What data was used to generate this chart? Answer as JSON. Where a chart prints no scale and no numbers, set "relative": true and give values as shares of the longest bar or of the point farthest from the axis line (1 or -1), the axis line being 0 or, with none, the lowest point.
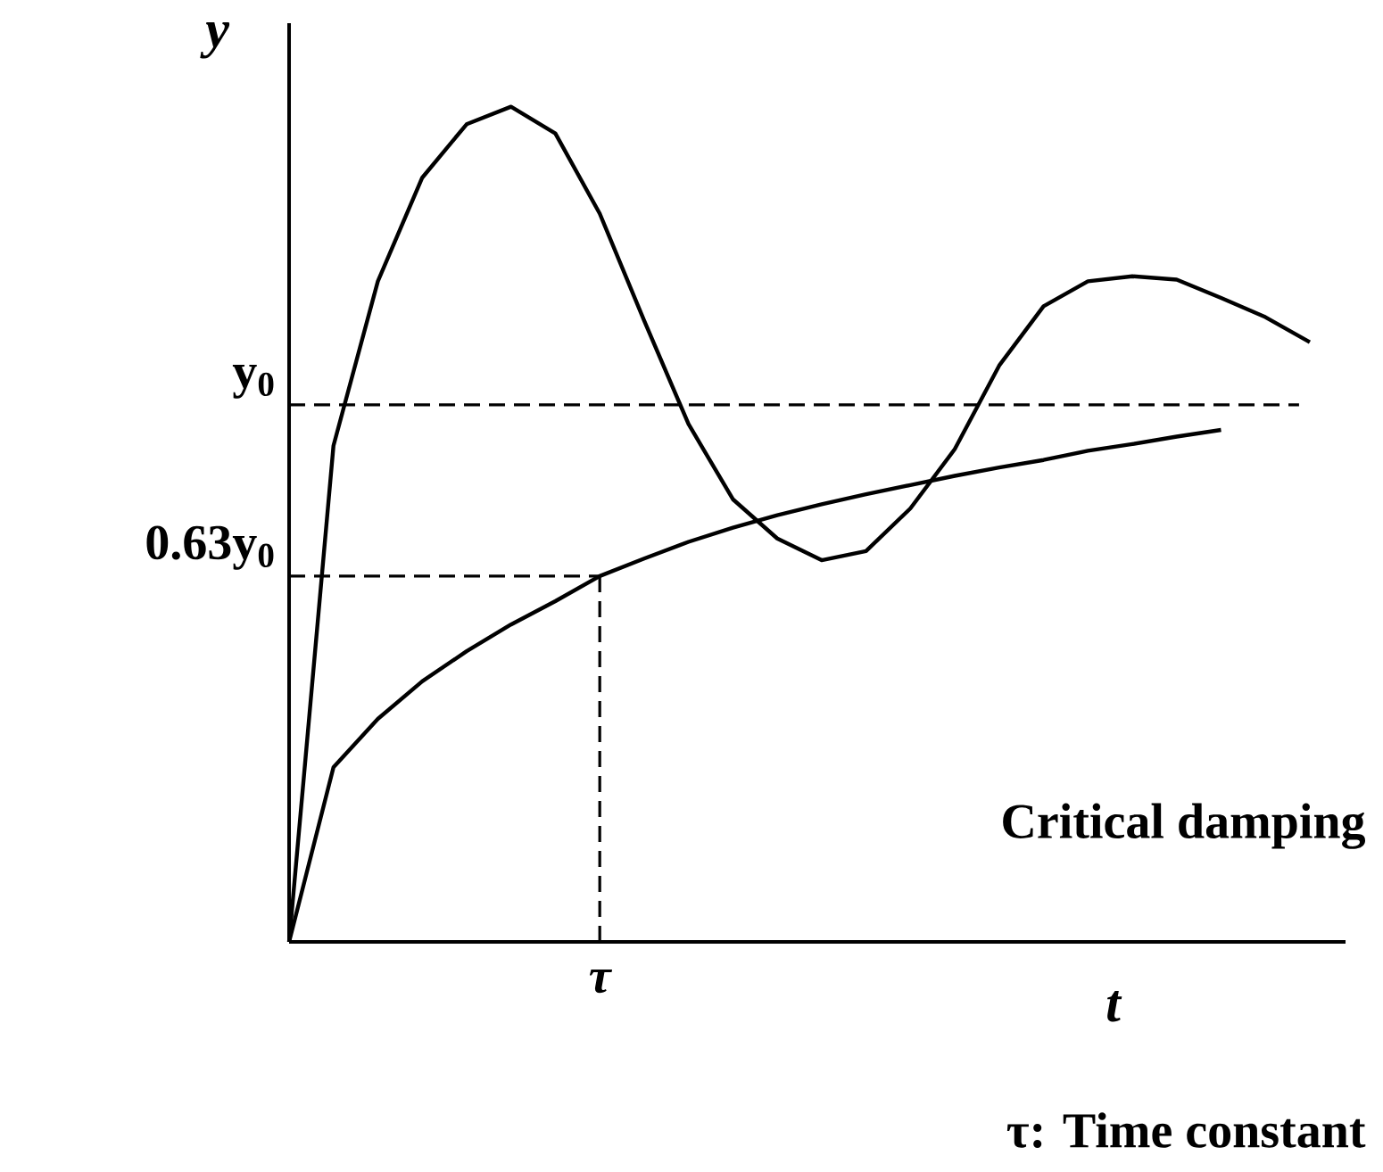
{
  "chart_data": {
    "type": "line",
    "relative": true,
    "xlabel": "t",
    "ylabel": "y",
    "categories": [
      null,
      null,
      null,
      null,
      null,
      null,
      null,
      null,
      null,
      null,
      null,
      null,
      null,
      null,
      null,
      null,
      null,
      null,
      null,
      null,
      null,
      null,
      null,
      null
    ],
    "marker": "none",
    "line_style": "solid",
    "series": [
      {
        "color": "#000000",
        "values": [
          0,
          0.594,
          0.791,
          0.915,
          0.979,
          1.0,
          0.968,
          0.872,
          0.744,
          0.62,
          0.53,
          0.483,
          0.457,
          0.468,
          0.519,
          0.59,
          0.69,
          0.761,
          0.791,
          0.797,
          0.793,
          0.771,
          0.748,
          0.718
        ]
      },
      {
        "color": "#000000",
        "values": [
          0,
          0.209,
          0.267,
          0.312,
          0.348,
          0.38,
          0.408,
          0.438,
          0.459,
          0.479,
          0.496,
          0.511,
          0.524,
          0.536,
          0.547,
          0.558,
          0.568,
          0.577,
          0.588,
          0.596,
          0.605,
          0.613,
          null,
          null
        ]
      }
    ],
    "ref_lines": [
      {
        "axis": "y",
        "value": 0.643,
        "label": "y$_{0}$",
        "line_style": "dashed"
      },
      {
        "axis": "y",
        "value": 0.438,
        "label": "0.63y$_{0}$",
        "line_style": "dashed"
      }
    ],
    "annotations": [
      "τ",
      "Critical damping",
      "τ: Time constant"
    ]
  }
}
